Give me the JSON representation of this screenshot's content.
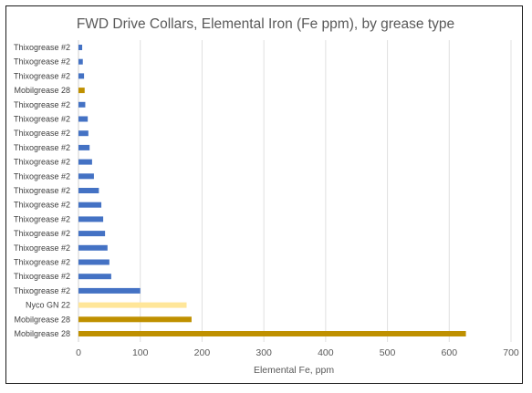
{
  "chart_data": {
    "type": "bar",
    "orientation": "horizontal",
    "title": "FWD Drive Collars, Elemental Iron (Fe ppm), by grease type",
    "xlabel": "Elemental Fe, ppm",
    "ylabel": "",
    "xlim": [
      0,
      700
    ],
    "xticks": [
      "0",
      "100",
      "200",
      "300",
      "400",
      "500",
      "600",
      "700"
    ],
    "grid": "vertical",
    "categories": [
      "Thixogrease #2",
      "Thixogrease #2",
      "Thixogrease #2",
      "Mobilgrease 28",
      "Thixogrease #2",
      "Thixogrease #2",
      "Thixogrease #2",
      "Thixogrease #2",
      "Thixogrease #2",
      "Thixogrease #2",
      "Thixogrease #2",
      "Thixogrease #2",
      "Thixogrease #2",
      "Thixogrease #2",
      "Thixogrease #2",
      "Thixogrease #2",
      "Thixogrease #2",
      "Thixogrease #2",
      "Nyco GN 22",
      "Mobilgrease 28",
      "Mobilgrease 28"
    ],
    "values": [
      6,
      7,
      9,
      10,
      11,
      15,
      16,
      18,
      22,
      25,
      33,
      37,
      40,
      43,
      47,
      50,
      53,
      100,
      175,
      183,
      627
    ],
    "colors": {
      "Thixogrease #2": "#4472c4",
      "Mobilgrease 28": "#bf9000",
      "Nyco GN 22": "#ffe699"
    },
    "gridline_color": "#e0e0e0"
  }
}
